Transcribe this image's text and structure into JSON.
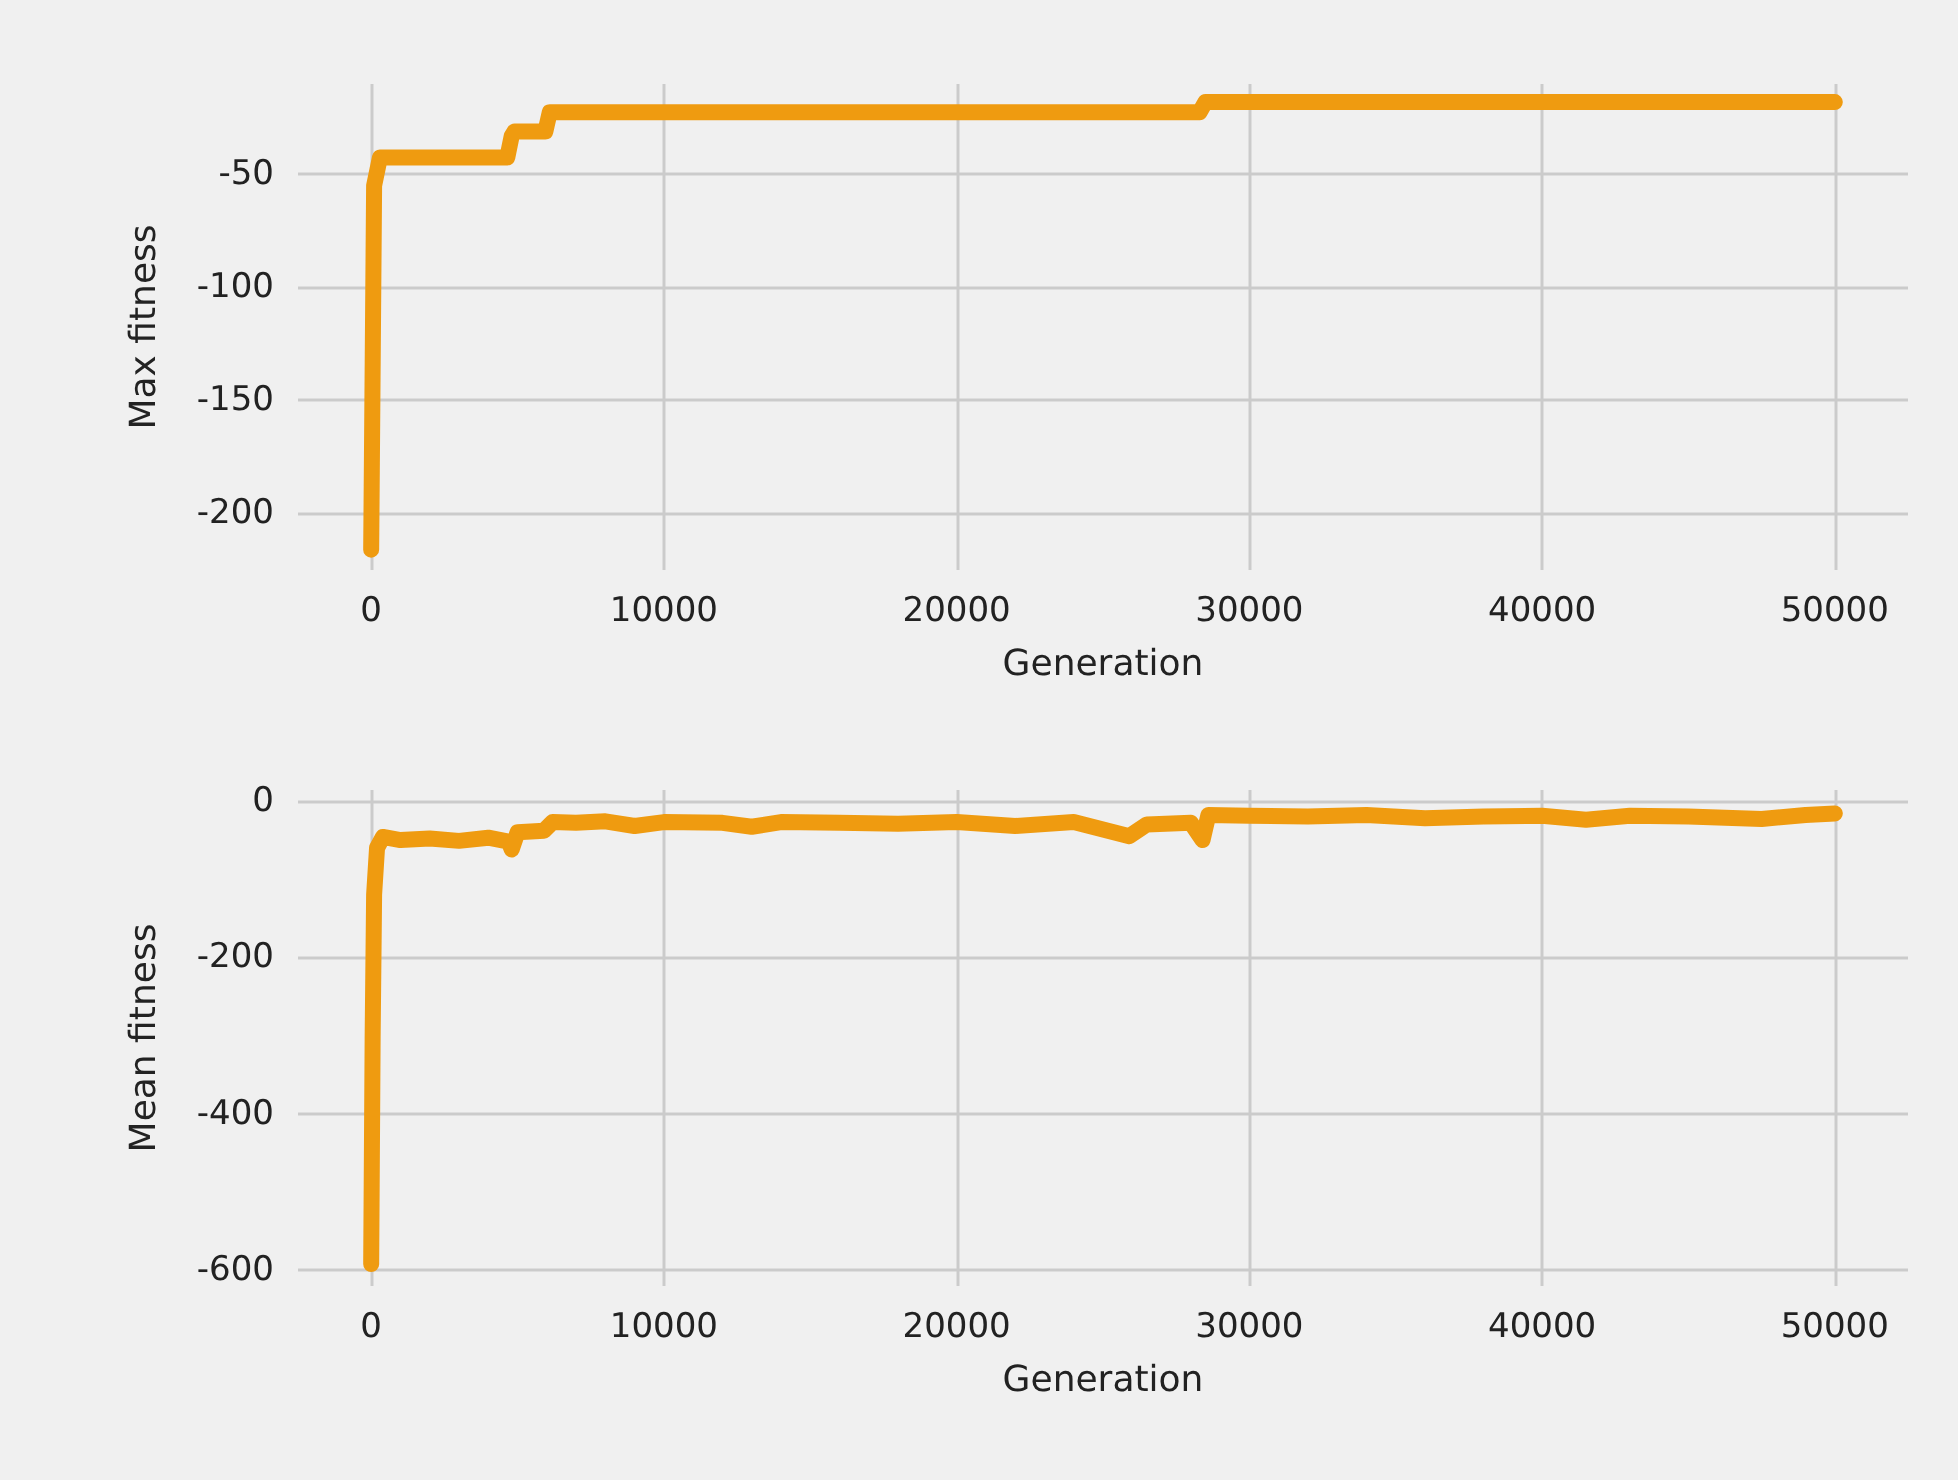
{
  "chart_data": [
    {
      "type": "line",
      "xlabel": "Generation",
      "ylabel": "Max fitness",
      "color": "#ef9b10",
      "grid": true,
      "x": [
        0,
        100,
        300,
        4650,
        4800,
        4900,
        5950,
        6100,
        28300,
        28500,
        50000
      ],
      "values": [
        -216,
        -55,
        -42.5,
        -42.5,
        -33,
        -31,
        -31,
        -22.5,
        -22.5,
        -18,
        -18
      ],
      "xlim": [
        -2500,
        52500
      ],
      "xticks": [
        0,
        10000,
        20000,
        30000,
        40000,
        50000
      ],
      "ylim": [
        -225,
        -10
      ],
      "yticks": [
        -200,
        -150,
        -100,
        -50
      ]
    },
    {
      "type": "line",
      "xlabel": "Generation",
      "ylabel": "Mean fitness",
      "color": "#ef9b10",
      "grid": true,
      "x": [
        0,
        50,
        100,
        200,
        400,
        1000,
        2000,
        3000,
        4000,
        4700,
        4800,
        5000,
        5900,
        6200,
        7000,
        8000,
        9000,
        10000,
        12000,
        13000,
        14000,
        16000,
        18000,
        20000,
        22000,
        24000,
        25900,
        26500,
        28000,
        28400,
        28600,
        30000,
        32000,
        34000,
        36000,
        38000,
        40000,
        41500,
        43000,
        45000,
        47500,
        49000,
        50000
      ],
      "values": [
        -592,
        -300,
        -120,
        -60,
        -46,
        -50,
        -48,
        -51,
        -47,
        -52,
        -62,
        -40,
        -38,
        -27,
        -28,
        -26,
        -32,
        -27,
        -28,
        -33,
        -27,
        -28,
        -29,
        -27,
        -32,
        -27,
        -45,
        -30,
        -28,
        -50,
        -18,
        -19,
        -20,
        -18,
        -22,
        -20,
        -19,
        -24,
        -19,
        -20,
        -23,
        -18,
        -16
      ],
      "xlim": [
        -2500,
        52500
      ],
      "xticks": [
        0,
        10000,
        20000,
        30000,
        40000,
        50000
      ],
      "ylim": [
        -620,
        14
      ],
      "yticks": [
        -600,
        -400,
        -200,
        0
      ]
    }
  ]
}
